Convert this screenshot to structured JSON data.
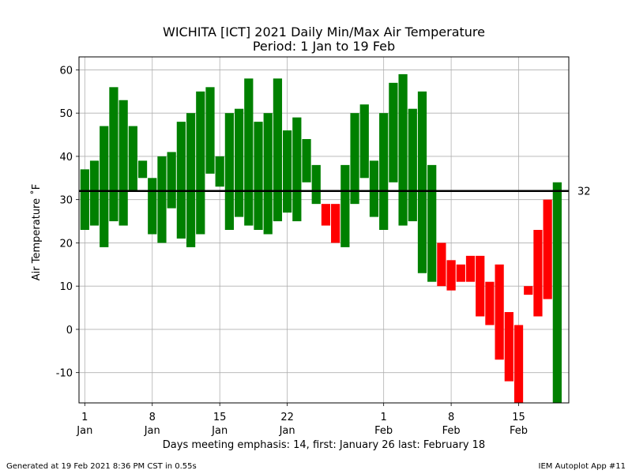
{
  "chart_data": {
    "type": "bar",
    "title": "WICHITA [ICT] 2021 Daily Min/Max Air Temperature",
    "subtitle": "Period: 1 Jan to 19 Feb",
    "ylabel": "Air Temperature $^\\circ$F",
    "ylabel_display": "Air Temperature ˚F",
    "xlabel": "Days meeting emphasis: 14, first: January 26 last: February 18",
    "ylim": [
      -17,
      63
    ],
    "yticks": [
      -10,
      0,
      10,
      20,
      30,
      40,
      50,
      60
    ],
    "grid": true,
    "threshold": {
      "value": 32,
      "label": "32"
    },
    "xticks": [
      {
        "day": 1,
        "line1": "1",
        "line2": "Jan"
      },
      {
        "day": 8,
        "line1": "8",
        "line2": "Jan"
      },
      {
        "day": 15,
        "line1": "15",
        "line2": "Jan"
      },
      {
        "day": 22,
        "line1": "22",
        "line2": "Jan"
      },
      {
        "day": 32,
        "line1": "1",
        "line2": "Feb"
      },
      {
        "day": 39,
        "line1": "8",
        "line2": "Feb"
      },
      {
        "day": 46,
        "line1": "15",
        "line2": "Feb"
      }
    ],
    "colors": {
      "normal": "#008000",
      "emphasis": "#ff0000",
      "threshold": "#000000",
      "grid": "#b0b0b0"
    },
    "days": [
      1,
      2,
      3,
      4,
      5,
      6,
      7,
      8,
      9,
      10,
      11,
      12,
      13,
      14,
      15,
      16,
      17,
      18,
      19,
      20,
      21,
      22,
      23,
      24,
      25,
      26,
      27,
      28,
      29,
      30,
      31,
      32,
      33,
      34,
      35,
      36,
      37,
      38,
      39,
      40,
      41,
      42,
      43,
      44,
      45,
      46,
      47,
      48,
      49,
      50
    ],
    "min": [
      23,
      24,
      19,
      25,
      24,
      32,
      35,
      22,
      20,
      28,
      21,
      19,
      22,
      36,
      33,
      23,
      26,
      24,
      23,
      22,
      25,
      27,
      25,
      34,
      29,
      24,
      20,
      19,
      29,
      35,
      26,
      23,
      34,
      24,
      25,
      13,
      11,
      10,
      9,
      11,
      11,
      3,
      1,
      -7,
      -12,
      -17,
      8,
      3,
      7,
      null
    ],
    "max": [
      37,
      39,
      47,
      56,
      53,
      47,
      39,
      35,
      40,
      41,
      48,
      50,
      55,
      56,
      40,
      50,
      51,
      58,
      48,
      50,
      58,
      46,
      49,
      44,
      38,
      29,
      29,
      38,
      50,
      52,
      39,
      50,
      57,
      59,
      51,
      55,
      38,
      20,
      16,
      15,
      17,
      17,
      11,
      15,
      4,
      1,
      10,
      23,
      30,
      34
    ],
    "emphasis": [
      false,
      false,
      false,
      false,
      false,
      false,
      false,
      false,
      false,
      false,
      false,
      false,
      false,
      false,
      false,
      false,
      false,
      false,
      false,
      false,
      false,
      false,
      false,
      false,
      false,
      true,
      true,
      false,
      false,
      false,
      false,
      false,
      false,
      false,
      false,
      false,
      false,
      true,
      true,
      true,
      true,
      true,
      true,
      true,
      true,
      true,
      true,
      true,
      true,
      false
    ]
  },
  "footer": {
    "left": "Generated at 19 Feb 2021 8:36 PM CST in 0.55s",
    "right": "IEM Autoplot App #11"
  }
}
